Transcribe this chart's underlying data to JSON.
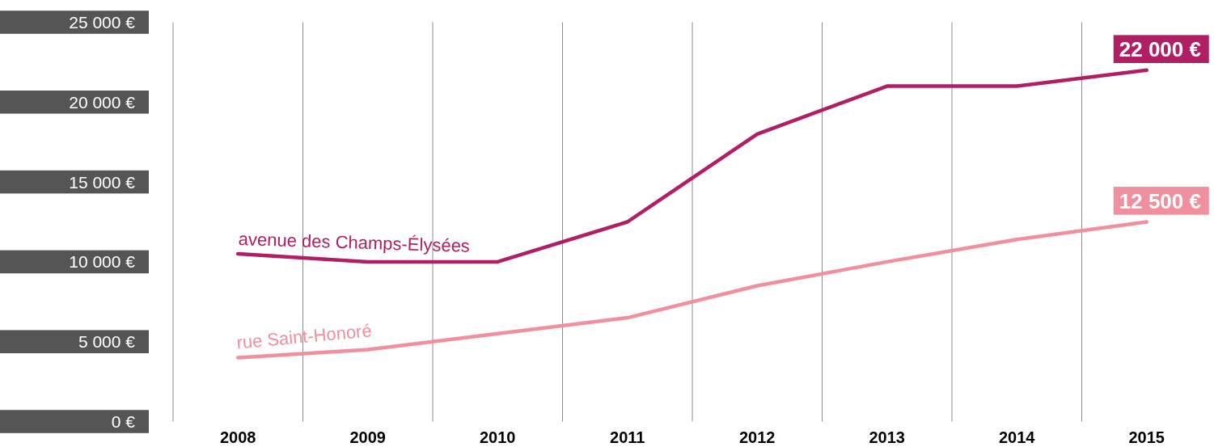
{
  "chart_data": {
    "type": "line",
    "categories": [
      "2008",
      "2009",
      "2010",
      "2011",
      "2012",
      "2013",
      "2014",
      "2015"
    ],
    "series": [
      {
        "name": "avenue des Champs-Élysées",
        "color": "#b01e64",
        "values": [
          10500,
          10000,
          10000,
          12500,
          18000,
          21000,
          21000,
          22000
        ],
        "value_labels": [
          null,
          null,
          null,
          null,
          null,
          null,
          null,
          "22 000 €"
        ]
      },
      {
        "name": "rue Saint-Honoré",
        "color": "#f08f9e",
        "values": [
          4000,
          4500,
          5500,
          6500,
          8500,
          10000,
          11400,
          12500
        ],
        "value_labels": [
          null,
          null,
          null,
          null,
          null,
          null,
          null,
          "12 500 €"
        ]
      }
    ],
    "ylim": [
      0,
      25000
    ],
    "yticks": [
      {
        "value": 0,
        "label": "0 €"
      },
      {
        "value": 5000,
        "label": "5 000 €"
      },
      {
        "value": 10000,
        "label": "10 000 €"
      },
      {
        "value": 15000,
        "label": "15 000 €"
      },
      {
        "value": 20000,
        "label": "20 000 €"
      },
      {
        "value": 25000,
        "label": "25 000 €"
      }
    ],
    "grid": "x",
    "marker": "none",
    "line_style": "solid"
  }
}
